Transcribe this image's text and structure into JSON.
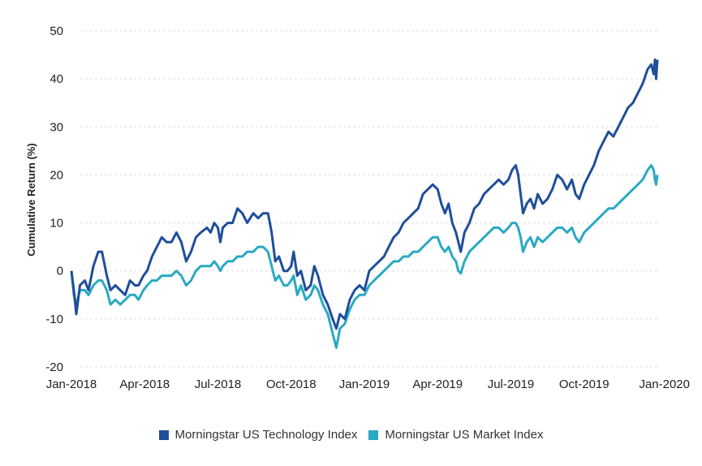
{
  "chart_data": {
    "type": "line",
    "title": "",
    "xlabel": "",
    "ylabel": "Cumulative Return (%)",
    "ylim": [
      -20,
      50
    ],
    "yticks": [
      "50",
      "40",
      "30",
      "20",
      "10",
      "0",
      "-10",
      "-20"
    ],
    "ytick_values": [
      50,
      40,
      30,
      20,
      10,
      0,
      -10,
      -20
    ],
    "xlim": [
      0,
      24
    ],
    "x_tick_labels": [
      "Jan-2018",
      "Apr-2018",
      "Jul-2018",
      "Oct-2018",
      "Jan-2019",
      "Apr-2019",
      "Jul-2019",
      "Oct-2019",
      "Jan-2020"
    ],
    "x_tick_months": [
      0,
      3,
      6,
      9,
      12,
      15,
      18,
      21,
      24
    ],
    "grid": "horizontal-dotted",
    "legend_position": "bottom-center",
    "series": [
      {
        "name": "Morningstar US Technology Index",
        "color": "#1f4e9a",
        "points": [
          [
            0,
            0
          ],
          [
            0.1,
            -4
          ],
          [
            0.2,
            -9
          ],
          [
            0.35,
            -3
          ],
          [
            0.55,
            -2
          ],
          [
            0.7,
            -4
          ],
          [
            0.9,
            1
          ],
          [
            1.1,
            4
          ],
          [
            1.25,
            4
          ],
          [
            1.45,
            -1
          ],
          [
            1.6,
            -4
          ],
          [
            1.8,
            -3
          ],
          [
            2.0,
            -4
          ],
          [
            2.2,
            -5
          ],
          [
            2.4,
            -2
          ],
          [
            2.6,
            -3
          ],
          [
            2.75,
            -3
          ],
          [
            2.95,
            -1
          ],
          [
            3.1,
            0
          ],
          [
            3.3,
            3
          ],
          [
            3.5,
            5
          ],
          [
            3.7,
            7
          ],
          [
            3.9,
            6
          ],
          [
            4.1,
            6
          ],
          [
            4.3,
            8
          ],
          [
            4.5,
            6
          ],
          [
            4.7,
            2
          ],
          [
            4.9,
            4
          ],
          [
            5.1,
            7
          ],
          [
            5.3,
            8
          ],
          [
            5.55,
            9
          ],
          [
            5.7,
            8
          ],
          [
            5.85,
            10
          ],
          [
            6.0,
            9
          ],
          [
            6.1,
            6
          ],
          [
            6.2,
            9
          ],
          [
            6.4,
            10
          ],
          [
            6.6,
            10
          ],
          [
            6.8,
            13
          ],
          [
            7.0,
            12
          ],
          [
            7.2,
            10
          ],
          [
            7.45,
            12
          ],
          [
            7.65,
            11
          ],
          [
            7.85,
            12
          ],
          [
            8.05,
            12
          ],
          [
            8.2,
            8
          ],
          [
            8.35,
            2
          ],
          [
            8.5,
            3
          ],
          [
            8.7,
            0
          ],
          [
            8.85,
            0
          ],
          [
            9.0,
            1
          ],
          [
            9.1,
            4
          ],
          [
            9.25,
            -1
          ],
          [
            9.4,
            0
          ],
          [
            9.6,
            -4
          ],
          [
            9.8,
            -3
          ],
          [
            9.95,
            1
          ],
          [
            10.1,
            -1
          ],
          [
            10.3,
            -5
          ],
          [
            10.5,
            -7
          ],
          [
            10.7,
            -10
          ],
          [
            10.85,
            -12
          ],
          [
            11.0,
            -9
          ],
          [
            11.2,
            -10
          ],
          [
            11.4,
            -6
          ],
          [
            11.6,
            -4
          ],
          [
            11.8,
            -3
          ],
          [
            12.0,
            -4
          ],
          [
            12.2,
            0
          ],
          [
            12.4,
            1
          ],
          [
            12.6,
            2
          ],
          [
            12.8,
            3
          ],
          [
            13.0,
            5
          ],
          [
            13.2,
            7
          ],
          [
            13.4,
            8
          ],
          [
            13.6,
            10
          ],
          [
            13.8,
            11
          ],
          [
            14.0,
            12
          ],
          [
            14.2,
            13
          ],
          [
            14.4,
            16
          ],
          [
            14.6,
            17
          ],
          [
            14.8,
            18
          ],
          [
            15.0,
            17
          ],
          [
            15.15,
            14
          ],
          [
            15.3,
            12
          ],
          [
            15.45,
            14
          ],
          [
            15.6,
            10
          ],
          [
            15.75,
            8
          ],
          [
            15.85,
            6
          ],
          [
            15.95,
            4
          ],
          [
            16.1,
            8
          ],
          [
            16.3,
            10
          ],
          [
            16.5,
            13
          ],
          [
            16.7,
            14
          ],
          [
            16.9,
            16
          ],
          [
            17.1,
            17
          ],
          [
            17.3,
            18
          ],
          [
            17.5,
            19
          ],
          [
            17.7,
            18
          ],
          [
            17.9,
            19
          ],
          [
            18.05,
            21
          ],
          [
            18.2,
            22
          ],
          [
            18.3,
            20
          ],
          [
            18.4,
            16
          ],
          [
            18.5,
            12
          ],
          [
            18.65,
            14
          ],
          [
            18.8,
            15
          ],
          [
            18.95,
            13
          ],
          [
            19.1,
            16
          ],
          [
            19.3,
            14
          ],
          [
            19.5,
            15
          ],
          [
            19.7,
            17
          ],
          [
            19.9,
            20
          ],
          [
            20.1,
            19
          ],
          [
            20.3,
            17
          ],
          [
            20.5,
            19
          ],
          [
            20.65,
            16
          ],
          [
            20.8,
            15
          ],
          [
            21.0,
            18
          ],
          [
            21.2,
            20
          ],
          [
            21.4,
            22
          ],
          [
            21.6,
            25
          ],
          [
            21.8,
            27
          ],
          [
            22.0,
            29
          ],
          [
            22.2,
            28
          ],
          [
            22.4,
            30
          ],
          [
            22.6,
            32
          ],
          [
            22.8,
            34
          ],
          [
            23.0,
            35
          ],
          [
            23.2,
            37
          ],
          [
            23.4,
            39
          ],
          [
            23.6,
            42
          ],
          [
            23.75,
            43
          ],
          [
            23.85,
            41
          ],
          [
            23.9,
            44
          ],
          [
            23.95,
            40
          ],
          [
            24.0,
            44
          ]
        ]
      },
      {
        "name": "Morningstar US Market Index",
        "color": "#2aa9c2",
        "points": [
          [
            0,
            0
          ],
          [
            0.1,
            -5
          ],
          [
            0.2,
            -7
          ],
          [
            0.35,
            -4
          ],
          [
            0.55,
            -4
          ],
          [
            0.7,
            -5
          ],
          [
            0.9,
            -3
          ],
          [
            1.1,
            -2
          ],
          [
            1.25,
            -2
          ],
          [
            1.45,
            -4
          ],
          [
            1.6,
            -7
          ],
          [
            1.8,
            -6
          ],
          [
            2.0,
            -7
          ],
          [
            2.2,
            -6
          ],
          [
            2.4,
            -5
          ],
          [
            2.6,
            -5
          ],
          [
            2.75,
            -6
          ],
          [
            2.95,
            -4
          ],
          [
            3.1,
            -3
          ],
          [
            3.3,
            -2
          ],
          [
            3.5,
            -2
          ],
          [
            3.7,
            -1
          ],
          [
            3.9,
            -1
          ],
          [
            4.1,
            -1
          ],
          [
            4.3,
            0
          ],
          [
            4.5,
            -1
          ],
          [
            4.7,
            -3
          ],
          [
            4.9,
            -2
          ],
          [
            5.1,
            0
          ],
          [
            5.3,
            1
          ],
          [
            5.55,
            1
          ],
          [
            5.7,
            1
          ],
          [
            5.85,
            2
          ],
          [
            6.0,
            1
          ],
          [
            6.1,
            0
          ],
          [
            6.2,
            1
          ],
          [
            6.4,
            2
          ],
          [
            6.6,
            2
          ],
          [
            6.8,
            3
          ],
          [
            7.0,
            3
          ],
          [
            7.2,
            4
          ],
          [
            7.45,
            4
          ],
          [
            7.65,
            5
          ],
          [
            7.85,
            5
          ],
          [
            8.05,
            4
          ],
          [
            8.2,
            1
          ],
          [
            8.35,
            -2
          ],
          [
            8.5,
            -1
          ],
          [
            8.7,
            -3
          ],
          [
            8.85,
            -3
          ],
          [
            9.0,
            -2
          ],
          [
            9.1,
            -1
          ],
          [
            9.25,
            -5
          ],
          [
            9.4,
            -3
          ],
          [
            9.6,
            -6
          ],
          [
            9.8,
            -5
          ],
          [
            9.95,
            -3
          ],
          [
            10.1,
            -4
          ],
          [
            10.3,
            -7
          ],
          [
            10.5,
            -9
          ],
          [
            10.7,
            -13
          ],
          [
            10.85,
            -16
          ],
          [
            11.0,
            -12
          ],
          [
            11.2,
            -11
          ],
          [
            11.4,
            -8
          ],
          [
            11.6,
            -6
          ],
          [
            11.8,
            -5
          ],
          [
            12.0,
            -5
          ],
          [
            12.2,
            -3
          ],
          [
            12.4,
            -2
          ],
          [
            12.6,
            -1
          ],
          [
            12.8,
            0
          ],
          [
            13.0,
            1
          ],
          [
            13.2,
            2
          ],
          [
            13.4,
            2
          ],
          [
            13.6,
            3
          ],
          [
            13.8,
            3
          ],
          [
            14.0,
            4
          ],
          [
            14.2,
            4
          ],
          [
            14.4,
            5
          ],
          [
            14.6,
            6
          ],
          [
            14.8,
            7
          ],
          [
            15.0,
            7
          ],
          [
            15.15,
            5
          ],
          [
            15.3,
            4
          ],
          [
            15.45,
            5
          ],
          [
            15.6,
            3
          ],
          [
            15.75,
            2
          ],
          [
            15.85,
            0
          ],
          [
            15.95,
            -0.5
          ],
          [
            16.1,
            2
          ],
          [
            16.3,
            4
          ],
          [
            16.5,
            5
          ],
          [
            16.7,
            6
          ],
          [
            16.9,
            7
          ],
          [
            17.1,
            8
          ],
          [
            17.3,
            9
          ],
          [
            17.5,
            9
          ],
          [
            17.7,
            8
          ],
          [
            17.9,
            9
          ],
          [
            18.05,
            10
          ],
          [
            18.2,
            10
          ],
          [
            18.3,
            9
          ],
          [
            18.4,
            7
          ],
          [
            18.5,
            4
          ],
          [
            18.65,
            6
          ],
          [
            18.8,
            7
          ],
          [
            18.95,
            5
          ],
          [
            19.1,
            7
          ],
          [
            19.3,
            6
          ],
          [
            19.5,
            7
          ],
          [
            19.7,
            8
          ],
          [
            19.9,
            9
          ],
          [
            20.1,
            9
          ],
          [
            20.3,
            8
          ],
          [
            20.5,
            9
          ],
          [
            20.65,
            7
          ],
          [
            20.8,
            6
          ],
          [
            21.0,
            8
          ],
          [
            21.2,
            9
          ],
          [
            21.4,
            10
          ],
          [
            21.6,
            11
          ],
          [
            21.8,
            12
          ],
          [
            22.0,
            13
          ],
          [
            22.2,
            13
          ],
          [
            22.4,
            14
          ],
          [
            22.6,
            15
          ],
          [
            22.8,
            16
          ],
          [
            23.0,
            17
          ],
          [
            23.2,
            18
          ],
          [
            23.4,
            19
          ],
          [
            23.6,
            21
          ],
          [
            23.75,
            22
          ],
          [
            23.85,
            21
          ],
          [
            23.9,
            19
          ],
          [
            23.95,
            18
          ],
          [
            24.0,
            20
          ]
        ]
      }
    ]
  }
}
